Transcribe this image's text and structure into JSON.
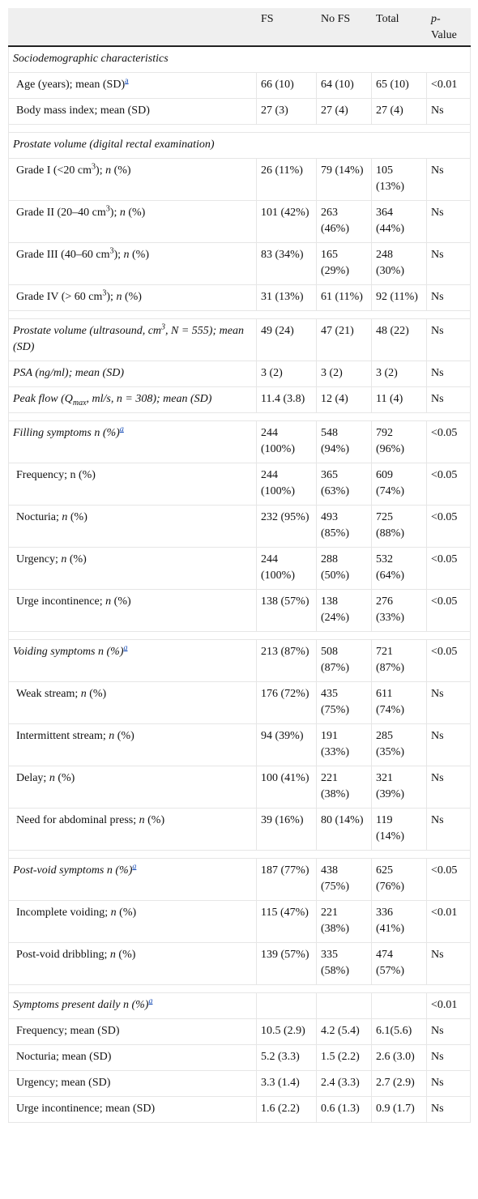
{
  "table": {
    "header": [
      "FS",
      "No FS",
      "Total",
      [
        "p",
        "-Value"
      ]
    ],
    "groups": [
      {
        "rows": [
          {
            "italic": true,
            "level": 0,
            "label": [
              "Sociodemographic characteristics"
            ]
          },
          {
            "level": 1,
            "label": [
              "Age (years); mean (SD)",
              {
                "text": "a",
                "style": "note"
              }
            ],
            "cells": [
              "66 (10)",
              "64 (10)",
              "65 (10)",
              "<0.01"
            ]
          },
          {
            "level": 1,
            "label": [
              "Body mass index; mean (SD)"
            ],
            "cells": [
              "27 (3)",
              "27 (4)",
              "27 (4)",
              "Ns"
            ]
          }
        ]
      },
      {
        "rows": [
          {
            "italic": true,
            "level": 0,
            "label": [
              "Prostate volume (digital rectal examination)"
            ]
          },
          {
            "level": 1,
            "label": [
              "Grade I (<20 cm",
              {
                "text": "3",
                "style": "sup"
              },
              "); ",
              {
                "text": "n",
                "style": "italic"
              },
              " (%)"
            ],
            "cells": [
              "26 (11%)",
              "79 (14%)",
              "105 (13%)",
              "Ns"
            ]
          },
          {
            "level": 1,
            "label": [
              "Grade II (20–40 cm",
              {
                "text": "3",
                "style": "sup"
              },
              "); ",
              {
                "text": "n",
                "style": "italic"
              },
              " (%)"
            ],
            "cells": [
              "101 (42%)",
              "263 (46%)",
              "364 (44%)",
              "Ns"
            ]
          },
          {
            "level": 1,
            "label": [
              "Grade III (40–60 cm",
              {
                "text": "3",
                "style": "sup"
              },
              "); ",
              {
                "text": "n",
                "style": "italic"
              },
              " (%)"
            ],
            "cells": [
              "83 (34%)",
              "165 (29%)",
              "248 (30%)",
              "Ns"
            ]
          },
          {
            "level": 1,
            "label": [
              "Grade IV (> 60 cm",
              {
                "text": "3",
                "style": "sup"
              },
              "); ",
              {
                "text": "n",
                "style": "italic"
              },
              " (%)"
            ],
            "cells": [
              "31 (13%)",
              "61 (11%)",
              "92 (11%)",
              "Ns"
            ]
          }
        ]
      },
      {
        "rows": [
          {
            "italic": true,
            "level": 0,
            "label": [
              "Prostate volume (ultrasound, cm",
              {
                "text": "3",
                "style": "sup"
              },
              ", N = 555); mean (SD)"
            ],
            "cells": [
              "49 (24)",
              "47 (21)",
              "48 (22)",
              "Ns"
            ]
          },
          {
            "italic": true,
            "level": 0,
            "label": [
              "PSA (ng/ml); mean (SD)"
            ],
            "cells": [
              "3 (2)",
              "3 (2)",
              "3 (2)",
              "Ns"
            ]
          },
          {
            "italic": true,
            "level": 0,
            "label": [
              "Peak flow (Q",
              {
                "text": "max",
                "style": "sub"
              },
              ", ml/s, n = 308); mean (SD)"
            ],
            "cells": [
              "11.4 (3.8)",
              "12 (4)",
              "11 (4)",
              "Ns"
            ]
          }
        ]
      },
      {
        "rows": [
          {
            "italic": true,
            "level": 0,
            "label": [
              "Filling symptoms n (%)",
              {
                "text": "a",
                "style": "note"
              }
            ],
            "cells": [
              "244 (100%)",
              "548 (94%)",
              "792 (96%)",
              "<0.05"
            ]
          },
          {
            "level": 1,
            "label": [
              "Frequency; n (%)"
            ],
            "cells": [
              "244 (100%)",
              "365 (63%)",
              "609 (74%)",
              "<0.05"
            ]
          },
          {
            "level": 1,
            "label": [
              "Nocturia; ",
              {
                "text": "n",
                "style": "italic"
              },
              " (%)"
            ],
            "cells": [
              "232 (95%)",
              "493 (85%)",
              "725 (88%)",
              "<0.05"
            ]
          },
          {
            "level": 1,
            "label": [
              "Urgency; ",
              {
                "text": "n",
                "style": "italic"
              },
              " (%)"
            ],
            "cells": [
              "244 (100%)",
              "288 (50%)",
              "532 (64%)",
              "<0.05"
            ]
          },
          {
            "level": 1,
            "label": [
              "Urge incontinence; ",
              {
                "text": "n",
                "style": "italic"
              },
              " (%)"
            ],
            "cells": [
              "138 (57%)",
              "138 (24%)",
              "276 (33%)",
              "<0.05"
            ]
          }
        ]
      },
      {
        "rows": [
          {
            "italic": true,
            "level": 0,
            "label": [
              "Voiding symptoms n (%)",
              {
                "text": "a",
                "style": "note"
              }
            ],
            "cells": [
              "213 (87%)",
              "508 (87%)",
              "721 (87%)",
              "<0.05"
            ]
          },
          {
            "level": 1,
            "label": [
              "Weak stream; ",
              {
                "text": "n",
                "style": "italic"
              },
              " (%)"
            ],
            "cells": [
              "176 (72%)",
              "435 (75%)",
              "611 (74%)",
              "Ns"
            ]
          },
          {
            "level": 1,
            "label": [
              "Intermittent stream; ",
              {
                "text": "n",
                "style": "italic"
              },
              " (%)"
            ],
            "cells": [
              "94 (39%)",
              "191 (33%)",
              "285 (35%)",
              "Ns"
            ]
          },
          {
            "level": 1,
            "label": [
              "Delay; ",
              {
                "text": "n",
                "style": "italic"
              },
              " (%)"
            ],
            "cells": [
              "100 (41%)",
              "221 (38%)",
              "321 (39%)",
              "Ns"
            ]
          },
          {
            "level": 1,
            "label": [
              "Need for abdominal press; ",
              {
                "text": "n",
                "style": "italic"
              },
              " (%)"
            ],
            "cells": [
              "39 (16%)",
              "80 (14%)",
              "119 (14%)",
              "Ns"
            ]
          }
        ]
      },
      {
        "rows": [
          {
            "italic": true,
            "level": 0,
            "label": [
              "Post-void symptoms n (%)",
              {
                "text": "a",
                "style": "note"
              }
            ],
            "cells": [
              "187 (77%)",
              "438 (75%)",
              "625 (76%)",
              "<0.05"
            ]
          },
          {
            "level": 1,
            "label": [
              "Incomplete voiding; ",
              {
                "text": "n",
                "style": "italic"
              },
              " (%)"
            ],
            "cells": [
              "115 (47%)",
              "221 (38%)",
              "336 (41%)",
              "<0.01"
            ]
          },
          {
            "level": 1,
            "label": [
              "Post-void dribbling; ",
              {
                "text": "n",
                "style": "italic"
              },
              " (%)"
            ],
            "cells": [
              "139 (57%)",
              "335 (58%)",
              "474 (57%)",
              "Ns"
            ]
          }
        ]
      },
      {
        "rows": [
          {
            "italic": true,
            "level": 0,
            "label": [
              "Symptoms present daily n (%)",
              {
                "text": "a",
                "style": "note"
              }
            ],
            "cells": [
              null,
              null,
              null,
              "<0.01"
            ]
          },
          {
            "level": 1,
            "label": [
              "Frequency; mean (SD)"
            ],
            "cells": [
              "10.5 (2.9)",
              "4.2 (5.4)",
              "6.1(5.6)",
              "Ns"
            ]
          },
          {
            "level": 1,
            "label": [
              "Nocturia; mean (SD)"
            ],
            "cells": [
              "5.2 (3.3)",
              "1.5 (2.2)",
              "2.6 (3.0)",
              "Ns"
            ]
          },
          {
            "level": 1,
            "label": [
              "Urgency; mean (SD)"
            ],
            "cells": [
              "3.3 (1.4)",
              "2.4 (3.3)",
              "2.7 (2.9)",
              "Ns"
            ]
          },
          {
            "level": 1,
            "label": [
              "Urge incontinence; mean (SD)"
            ],
            "cells": [
              "1.6 (2.2)",
              "0.6 (1.3)",
              "0.9 (1.7)",
              "Ns"
            ]
          }
        ]
      }
    ]
  }
}
